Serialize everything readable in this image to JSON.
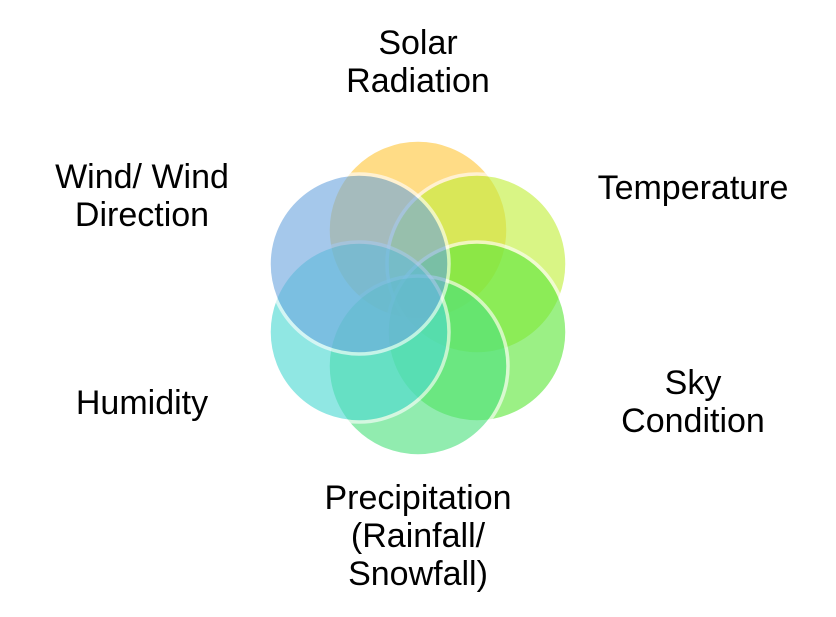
{
  "diagram": {
    "type": "cycle-overlapping-circles",
    "petals": [
      {
        "id": "solar",
        "lines": [
          "Solar",
          "Radiation"
        ],
        "color": "#ffc83d"
      },
      {
        "id": "temperature",
        "lines": [
          "Temperature"
        ],
        "color": "#c2ef3c"
      },
      {
        "id": "sky",
        "lines": [
          "Sky",
          "Condition"
        ],
        "color": "#5ee83c"
      },
      {
        "id": "precipitation",
        "lines": [
          "Precipitation",
          "(Rainfall/",
          "Snowfall)"
        ],
        "color": "#4fe27f"
      },
      {
        "id": "humidity",
        "lines": [
          "Humidity"
        ],
        "color": "#4dd9d2"
      },
      {
        "id": "wind",
        "lines": [
          "Wind/ Wind",
          "Direction"
        ],
        "color": "#6fa8e0"
      }
    ]
  }
}
